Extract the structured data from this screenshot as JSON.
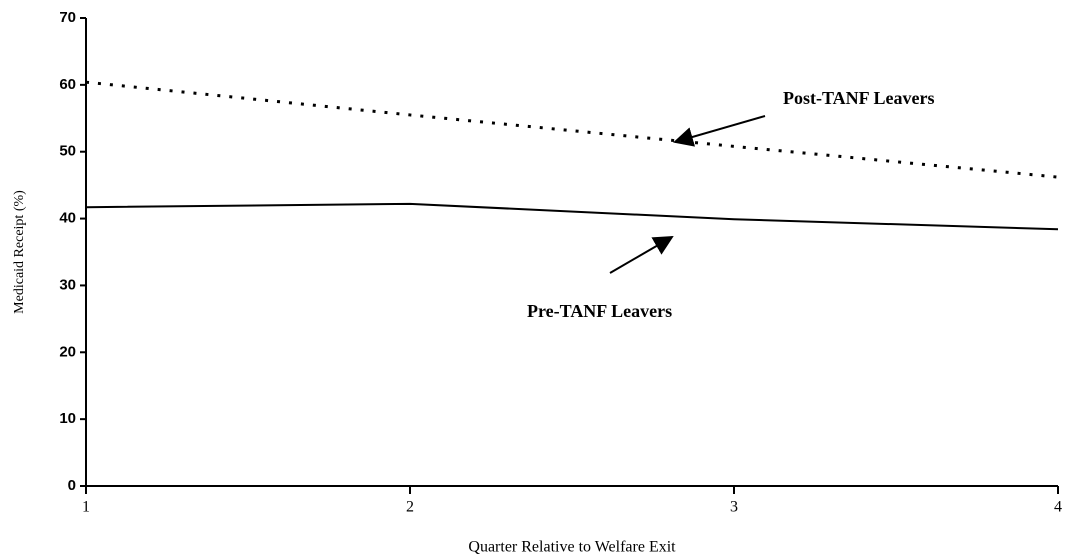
{
  "chart_data": {
    "type": "line",
    "x_label": "Quarter Relative to Welfare Exit",
    "y_label": "Medicaid Receipt (%)",
    "x": [
      1,
      2,
      3,
      4
    ],
    "series": [
      {
        "name": "Post-TANF Leavers",
        "color": "#000000",
        "dash": "dotted",
        "values": [
          60.4,
          55.5,
          50.8,
          46.2
        ]
      },
      {
        "name": "Pre-TANF Leavers",
        "color": "#000000",
        "dash": "solid",
        "values": [
          41.7,
          42.2,
          39.9,
          38.4
        ]
      }
    ],
    "xlim": [
      1,
      4
    ],
    "xticks": [
      1,
      2,
      3,
      4
    ],
    "ylim": [
      0,
      70
    ],
    "yticks": [
      0,
      10,
      20,
      30,
      40,
      50,
      60,
      70
    ],
    "grid": false
  }
}
